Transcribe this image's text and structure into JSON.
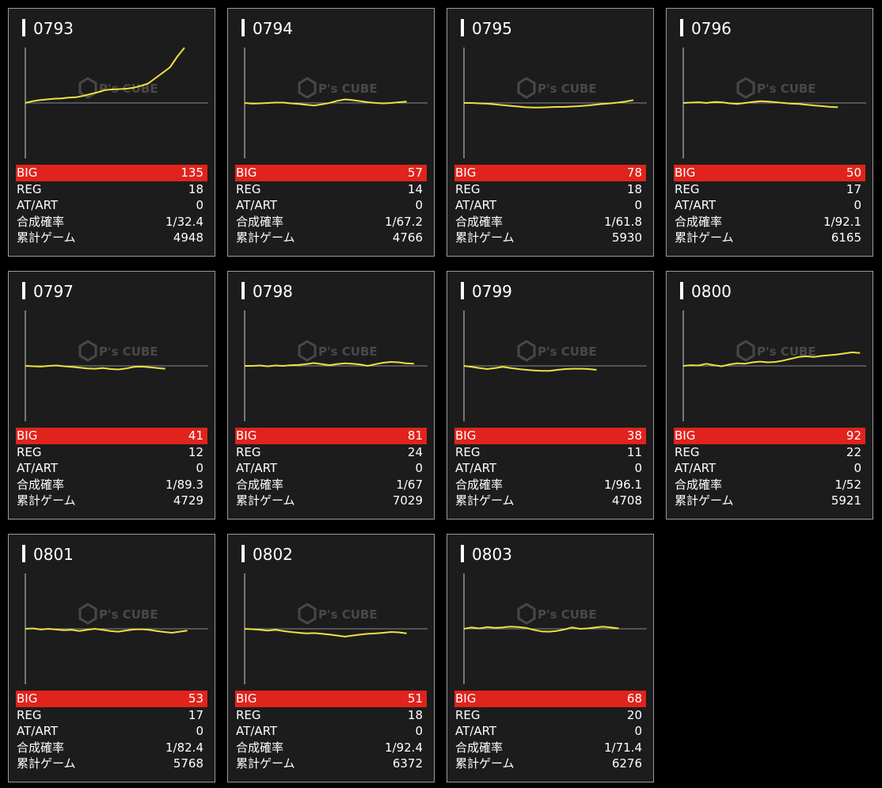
{
  "labels": {
    "big": "BIG",
    "reg": "REG",
    "at_art": "AT/ART",
    "combined_prob": "合成確率",
    "total_games": "累計ゲーム"
  },
  "watermark": {
    "brand": "P's CUBE",
    "icon": "cube-logo-icon"
  },
  "colors": {
    "big_row": "#e0231c",
    "graph_line": "#f0e040",
    "card_bg": "#1c1c1c",
    "card_border": "#9a9a9a"
  },
  "machines": [
    {
      "id": "0793",
      "big": "135",
      "reg": "18",
      "at_art": "0",
      "prob": "1/32.4",
      "games": "4948",
      "trend": [
        0,
        0.5,
        0.8,
        1,
        1.2,
        1.3,
        1.5,
        1.6,
        2,
        2.5,
        3,
        3.6,
        3.8,
        3.9,
        4,
        4.3,
        4.8,
        5.5,
        7,
        8.5,
        10,
        13,
        15.5
      ]
    },
    {
      "id": "0794",
      "big": "57",
      "reg": "14",
      "at_art": "0",
      "prob": "1/67.2",
      "games": "4766",
      "trend": [
        0,
        -0.2,
        -0.1,
        0,
        0.1,
        0.1,
        -0.1,
        -0.3,
        -0.5,
        -0.7,
        -0.4,
        0,
        0.6,
        1,
        0.8,
        0.5,
        0.2,
        0,
        -0.1,
        0,
        0.2,
        0.4
      ]
    },
    {
      "id": "0795",
      "big": "78",
      "reg": "18",
      "at_art": "0",
      "prob": "1/61.8",
      "games": "5930",
      "trend": [
        0,
        0,
        -0.1,
        -0.2,
        -0.4,
        -0.6,
        -0.8,
        -1,
        -1.2,
        -1.3,
        -1.3,
        -1.2,
        -1.1,
        -1.1,
        -1,
        -0.9,
        -0.7,
        -0.5,
        -0.3,
        -0.1,
        0.1,
        0.4,
        0.8
      ]
    },
    {
      "id": "0796",
      "big": "50",
      "reg": "17",
      "at_art": "0",
      "prob": "1/92.1",
      "games": "6165",
      "trend": [
        0,
        0.1,
        0.2,
        0,
        0.3,
        0.2,
        -0.1,
        -0.3,
        0,
        0.3,
        0.5,
        0.4,
        0.2,
        0,
        -0.2,
        -0.3,
        -0.5,
        -0.7,
        -0.9,
        -1.1,
        -1.2
      ]
    },
    {
      "id": "0797",
      "big": "41",
      "reg": "12",
      "at_art": "0",
      "prob": "1/89.3",
      "games": "4729",
      "trend": [
        0,
        -0.1,
        -0.2,
        0,
        0.1,
        -0.1,
        -0.3,
        -0.5,
        -0.7,
        -0.8,
        -0.6,
        -0.9,
        -1,
        -0.7,
        -0.3,
        -0.2,
        -0.4,
        -0.6,
        -0.8
      ]
    },
    {
      "id": "0798",
      "big": "81",
      "reg": "24",
      "at_art": "0",
      "prob": "1/67",
      "games": "7029",
      "trend": [
        0,
        0,
        0.1,
        -0.1,
        0.1,
        0,
        0.2,
        0.3,
        0.5,
        0.8,
        0.5,
        0.2,
        0.5,
        0.7,
        0.6,
        0.4,
        0,
        0.5,
        0.9,
        1.1,
        1,
        0.7,
        0.6
      ]
    },
    {
      "id": "0799",
      "big": "38",
      "reg": "11",
      "at_art": "0",
      "prob": "1/96.1",
      "games": "4708",
      "trend": [
        0,
        -0.3,
        -0.6,
        -0.9,
        -0.6,
        -0.3,
        -0.6,
        -0.9,
        -1.1,
        -1.3,
        -1.4,
        -1.4,
        -1.1,
        -0.9,
        -0.8,
        -0.8,
        -0.9,
        -1.1
      ]
    },
    {
      "id": "0800",
      "big": "92",
      "reg": "22",
      "at_art": "0",
      "prob": "1/52",
      "games": "5921",
      "trend": [
        0,
        0.2,
        0.1,
        0.6,
        0.2,
        -0.1,
        0.4,
        0.7,
        0.6,
        1,
        1.2,
        1,
        1.1,
        1.5,
        2,
        2.5,
        2.7,
        2.5,
        2.8,
        3,
        3.2,
        3.5,
        3.8,
        3.6
      ]
    },
    {
      "id": "0801",
      "big": "53",
      "reg": "17",
      "at_art": "0",
      "prob": "1/82.4",
      "games": "5768",
      "trend": [
        0,
        0.1,
        -0.2,
        0,
        -0.2,
        -0.4,
        -0.3,
        -0.6,
        -0.3,
        0,
        -0.3,
        -0.6,
        -0.8,
        -0.5,
        -0.2,
        -0.1,
        -0.3,
        -0.6,
        -0.9,
        -1.1,
        -0.8,
        -0.5
      ]
    },
    {
      "id": "0802",
      "big": "51",
      "reg": "18",
      "at_art": "0",
      "prob": "1/92.4",
      "games": "6372",
      "trend": [
        0,
        -0.1,
        -0.3,
        -0.5,
        -0.3,
        -0.6,
        -0.9,
        -1.1,
        -1.3,
        -1.2,
        -1.4,
        -1.6,
        -1.9,
        -2.2,
        -1.9,
        -1.6,
        -1.4,
        -1.3,
        -1.1,
        -0.9,
        -1,
        -1.3
      ]
    },
    {
      "id": "0803",
      "big": "68",
      "reg": "20",
      "at_art": "0",
      "prob": "1/71.4",
      "games": "6276",
      "trend": [
        0,
        0.4,
        0.1,
        0.5,
        0.3,
        0.4,
        0.6,
        0.5,
        0.3,
        -0.3,
        -0.7,
        -0.8,
        -0.6,
        -0.2,
        0.4,
        0,
        0.1,
        0.4,
        0.6,
        0.4,
        0.1
      ]
    }
  ]
}
